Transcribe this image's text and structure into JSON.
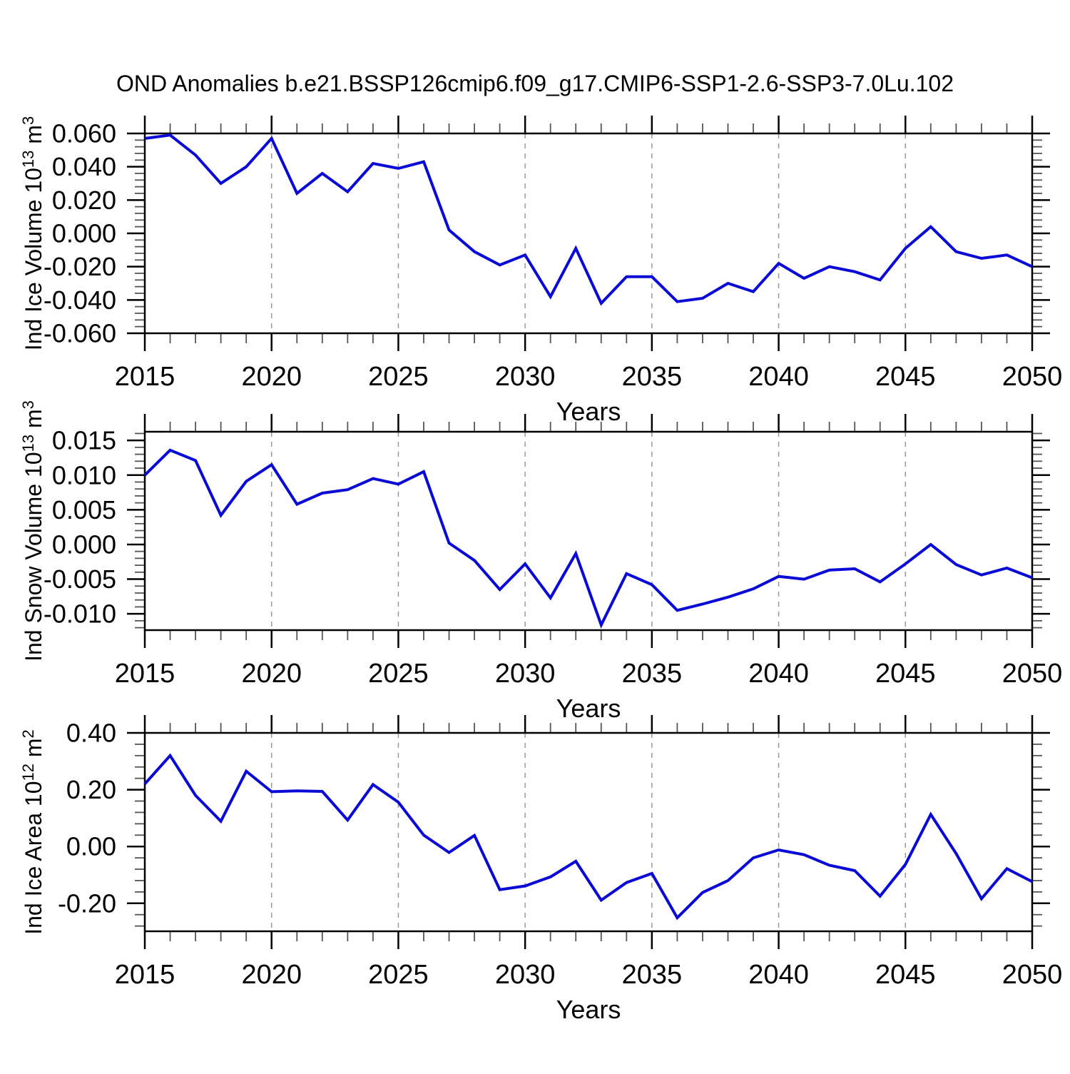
{
  "title": "OND Anomalies b.e21.BSSP126cmip6.f09_g17.CMIP6-SSP1-2.6-SSP3-7.0Lu.102",
  "style": {
    "line_color": "#0a0ad6",
    "frame_color": "#000000",
    "grid_color": "#999999",
    "minor_tick_color": "#555555",
    "text_color": "#000000"
  },
  "chart_data": [
    {
      "type": "line",
      "name": "ind-ice-volume",
      "ylabel_segments": [
        {
          "t": "Ind Ice Volume 10"
        },
        {
          "t": "13",
          "sup": true
        },
        {
          "t": " m"
        },
        {
          "t": "3",
          "sup": true
        }
      ],
      "xlabel": "Years",
      "xlim": [
        2015,
        2050
      ],
      "xticks": [
        2015,
        2020,
        2025,
        2030,
        2035,
        2040,
        2045,
        2050
      ],
      "x_minor_step": 1,
      "grid_years": [
        2020,
        2025,
        2030,
        2035,
        2040,
        2045
      ],
      "ylim": [
        -0.06,
        0.06
      ],
      "yticks": [
        {
          "v": 0.06,
          "label": "0.060"
        },
        {
          "v": 0.04,
          "label": "0.040"
        },
        {
          "v": 0.02,
          "label": "0.020"
        },
        {
          "v": 0.0,
          "label": "0.000"
        },
        {
          "v": -0.02,
          "label": "-0.020"
        },
        {
          "v": -0.04,
          "label": "-0.040"
        },
        {
          "v": -0.06,
          "label": "-0.060"
        }
      ],
      "y_minor_step": 0.004,
      "x": [
        2015,
        2016,
        2017,
        2018,
        2019,
        2020,
        2021,
        2022,
        2023,
        2024,
        2025,
        2026,
        2027,
        2028,
        2029,
        2030,
        2031,
        2032,
        2033,
        2034,
        2035,
        2036,
        2037,
        2038,
        2039,
        2040,
        2041,
        2042,
        2043,
        2044,
        2045,
        2046,
        2047,
        2048,
        2049,
        2050
      ],
      "values": [
        0.057,
        0.059,
        0.047,
        0.03,
        0.04,
        0.057,
        0.024,
        0.036,
        0.025,
        0.042,
        0.039,
        0.043,
        0.002,
        -0.011,
        -0.019,
        -0.013,
        -0.038,
        -0.009,
        -0.042,
        -0.026,
        -0.026,
        -0.041,
        -0.039,
        -0.03,
        -0.035,
        -0.018,
        -0.027,
        -0.02,
        -0.023,
        -0.028,
        -0.009,
        0.004,
        -0.011,
        -0.015,
        -0.013,
        -0.02
      ]
    },
    {
      "type": "line",
      "name": "ind-snow-volume",
      "ylabel_segments": [
        {
          "t": "Ind Snow Volume 10"
        },
        {
          "t": "13",
          "sup": true
        },
        {
          "t": " m"
        },
        {
          "t": "3",
          "sup": true
        }
      ],
      "xlabel": "Years",
      "xlim": [
        2015,
        2050
      ],
      "xticks": [
        2015,
        2020,
        2025,
        2030,
        2035,
        2040,
        2045,
        2050
      ],
      "x_minor_step": 1,
      "grid_years": [
        2020,
        2025,
        2030,
        2035,
        2040,
        2045
      ],
      "ylim": [
        -0.01235,
        0.01625
      ],
      "yticks": [
        {
          "v": 0.015,
          "label": "0.015"
        },
        {
          "v": 0.01,
          "label": "0.010"
        },
        {
          "v": 0.005,
          "label": "0.005"
        },
        {
          "v": 0.0,
          "label": "0.000"
        },
        {
          "v": -0.005,
          "label": "-0.005"
        },
        {
          "v": -0.01,
          "label": "-0.010"
        }
      ],
      "y_minor_step": 0.001,
      "x": [
        2015,
        2016,
        2017,
        2018,
        2019,
        2020,
        2021,
        2022,
        2023,
        2024,
        2025,
        2026,
        2027,
        2028,
        2029,
        2030,
        2031,
        2032,
        2033,
        2034,
        2035,
        2036,
        2037,
        2038,
        2039,
        2040,
        2041,
        2042,
        2043,
        2044,
        2045,
        2046,
        2047,
        2048,
        2049,
        2050
      ],
      "values": [
        0.01,
        0.0136,
        0.0121,
        0.0042,
        0.0091,
        0.0115,
        0.0058,
        0.0074,
        0.0079,
        0.0095,
        0.0087,
        0.0105,
        0.0002,
        -0.0023,
        -0.0065,
        -0.0028,
        -0.0077,
        -0.0013,
        -0.0116,
        -0.0042,
        -0.0058,
        -0.0095,
        -0.0086,
        -0.0076,
        -0.0064,
        -0.0046,
        -0.005,
        -0.0037,
        -0.0035,
        -0.0054,
        -0.0028,
        0.0,
        -0.0029,
        -0.0044,
        -0.0034,
        -0.0048
      ]
    },
    {
      "type": "line",
      "name": "ind-ice-area",
      "ylabel_segments": [
        {
          "t": "Ind Ice Area 10"
        },
        {
          "t": "12",
          "sup": true
        },
        {
          "t": " m"
        },
        {
          "t": "2",
          "sup": true
        }
      ],
      "xlabel": "Years",
      "xlim": [
        2015,
        2050
      ],
      "xticks": [
        2015,
        2020,
        2025,
        2030,
        2035,
        2040,
        2045,
        2050
      ],
      "x_minor_step": 1,
      "grid_years": [
        2020,
        2025,
        2030,
        2035,
        2040,
        2045
      ],
      "ylim": [
        -0.2985,
        0.4
      ],
      "yticks": [
        {
          "v": 0.4,
          "label": "0.40"
        },
        {
          "v": 0.2,
          "label": "0.20"
        },
        {
          "v": 0.0,
          "label": "0.00"
        },
        {
          "v": -0.2,
          "label": "-0.20"
        }
      ],
      "y_minor_step": 0.04,
      "x": [
        2015,
        2016,
        2017,
        2018,
        2019,
        2020,
        2021,
        2022,
        2023,
        2024,
        2025,
        2026,
        2027,
        2028,
        2029,
        2030,
        2031,
        2032,
        2033,
        2034,
        2035,
        2036,
        2037,
        2038,
        2039,
        2040,
        2041,
        2042,
        2043,
        2044,
        2045,
        2046,
        2047,
        2048,
        2049,
        2050
      ],
      "values": [
        0.22,
        0.32,
        0.18,
        0.089,
        0.265,
        0.193,
        0.196,
        0.194,
        0.093,
        0.218,
        0.156,
        0.04,
        -0.021,
        0.039,
        -0.152,
        -0.139,
        -0.107,
        -0.052,
        -0.189,
        -0.127,
        -0.095,
        -0.251,
        -0.162,
        -0.12,
        -0.04,
        -0.012,
        -0.029,
        -0.066,
        -0.085,
        -0.175,
        -0.063,
        0.113,
        -0.025,
        -0.184,
        -0.078,
        -0.124
      ]
    }
  ]
}
